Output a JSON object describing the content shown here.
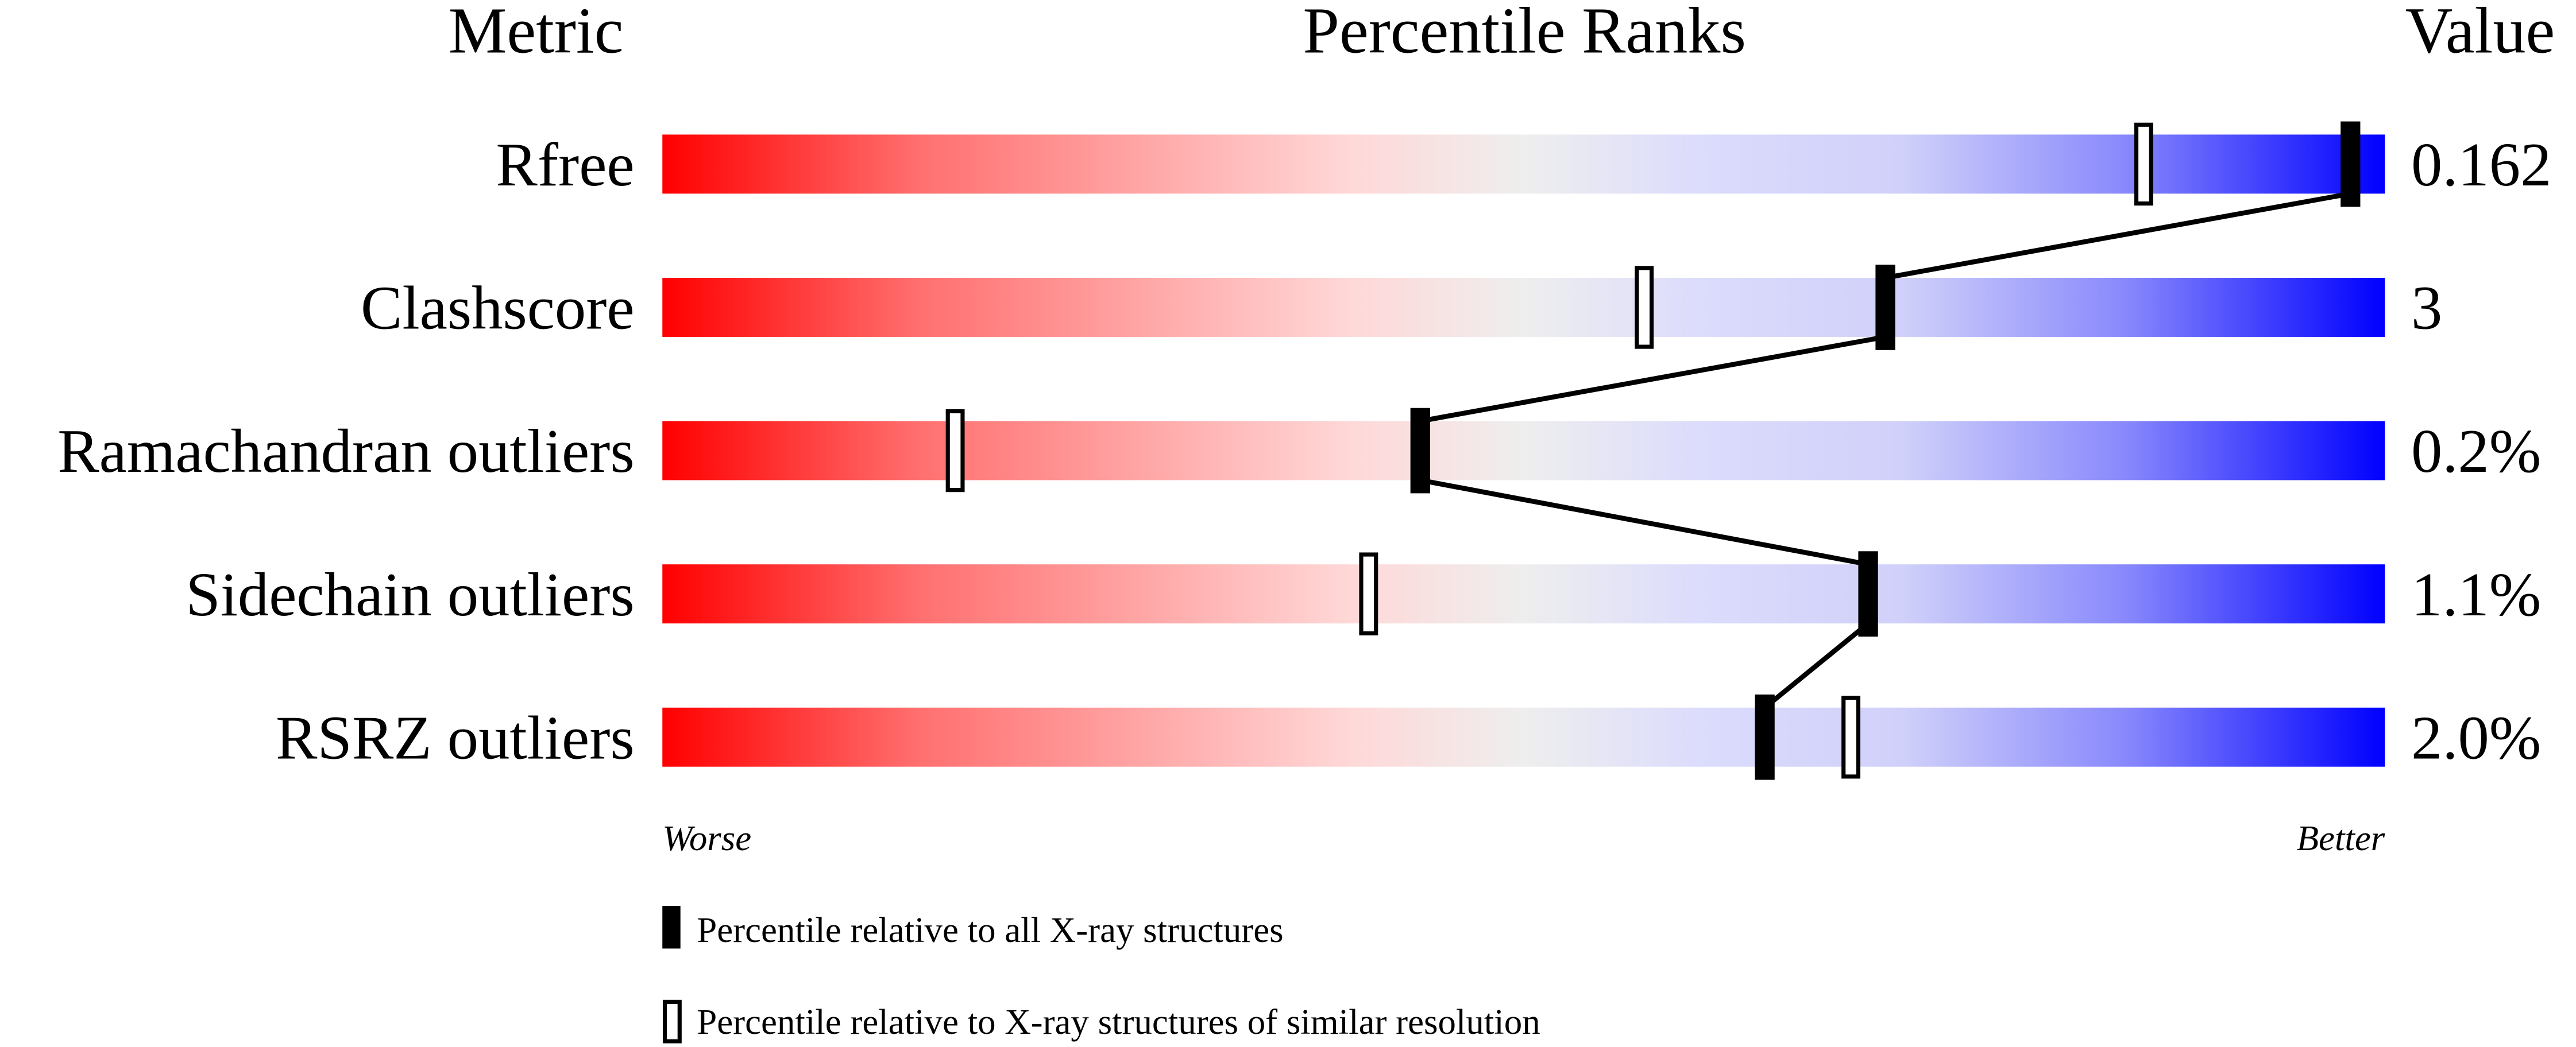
{
  "chart_data": {
    "type": "percentile-slider",
    "headers": {
      "metric": "Metric",
      "ranks": "Percentile Ranks",
      "value": "Value"
    },
    "xlim": [
      0,
      100
    ],
    "axis_left_label": "Worse",
    "axis_right_label": "Better",
    "rows": [
      {
        "metric": "Rfree",
        "value": "0.162",
        "percentile_all": 98,
        "percentile_similar": 86
      },
      {
        "metric": "Clashscore",
        "value": "3",
        "percentile_all": 71,
        "percentile_similar": 57
      },
      {
        "metric": "Ramachandran outliers",
        "value": "0.2%",
        "percentile_all": 44,
        "percentile_similar": 17
      },
      {
        "metric": "Sidechain outliers",
        "value": "1.1%",
        "percentile_all": 70,
        "percentile_similar": 41
      },
      {
        "metric": "RSRZ outliers",
        "value": "2.0%",
        "percentile_all": 64,
        "percentile_similar": 69
      }
    ],
    "legend": {
      "all": "Percentile relative to all X-ray structures",
      "similar": "Percentile relative to X-ray structures of similar resolution"
    },
    "colors": {
      "worse": "#ff0000",
      "middle": "#eeeeee",
      "better": "#0000ff",
      "marker": "#000000"
    }
  }
}
